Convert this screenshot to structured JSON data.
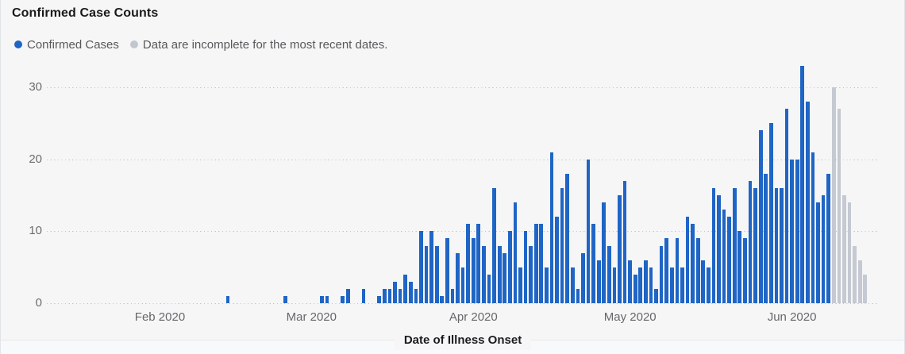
{
  "header": {
    "title": "Confirmed Case Counts"
  },
  "legend": {
    "items": [
      {
        "label": "Confirmed Cases",
        "color": "#1F65C5"
      },
      {
        "label": "Data are incomplete for the most recent dates.",
        "color": "#C2C7CE"
      }
    ]
  },
  "axes": {
    "x_title": "Date of Illness Onset",
    "y_ticks": [
      0,
      10,
      20,
      30
    ],
    "x_month_labels": [
      "Feb 2020",
      "Mar 2020",
      "Apr 2020",
      "May 2020",
      "Jun 2020"
    ]
  },
  "colors": {
    "confirmed_bar": "#1F65C5",
    "incomplete_bar": "#C5C9D1",
    "background": "#F6F6F7",
    "gridline": "#C4C5C8"
  },
  "chart_data": {
    "type": "bar",
    "title": "Confirmed Case Counts",
    "xlabel": "Date of Illness Onset",
    "ylabel": "",
    "ylim": [
      0,
      30
    ],
    "grid": "horizontal dotted",
    "legend_position": "top-left",
    "x_start_date": "2020-02-14",
    "x_end_date": "2020-06-15",
    "x_tick_labels": [
      "Feb 2020",
      "Mar 2020",
      "Apr 2020",
      "May 2020",
      "Jun 2020"
    ],
    "month_tick_day_offsets": [
      -13,
      16,
      47,
      77,
      108
    ],
    "incomplete_last_n": 7,
    "incomplete_note": "Data are incomplete for the most recent dates.",
    "series": [
      {
        "name": "Confirmed Cases",
        "values": [
          1,
          0,
          0,
          0,
          0,
          0,
          0,
          0,
          0,
          0,
          0,
          1,
          0,
          0,
          0,
          0,
          0,
          0,
          1,
          1,
          0,
          0,
          1,
          2,
          0,
          0,
          2,
          0,
          0,
          1,
          2,
          2,
          3,
          2,
          4,
          3,
          2,
          10,
          8,
          10,
          8,
          1,
          9,
          2,
          7,
          5,
          11,
          9,
          11,
          8,
          4,
          16,
          8,
          7,
          10,
          14,
          5,
          10,
          8,
          11,
          11,
          5,
          21,
          12,
          16,
          18,
          5,
          2,
          7,
          20,
          11,
          6,
          14,
          8,
          5,
          15,
          17,
          6,
          4,
          5,
          6,
          5,
          2,
          8,
          9,
          5,
          9,
          5,
          12,
          11,
          9,
          6,
          5,
          16,
          15,
          13,
          12,
          16,
          10,
          9,
          17,
          16,
          24,
          18,
          25,
          16,
          16,
          27,
          20,
          20,
          33,
          28,
          21,
          14,
          15,
          18,
          30,
          27,
          15,
          14,
          8,
          6,
          4
        ]
      }
    ]
  }
}
